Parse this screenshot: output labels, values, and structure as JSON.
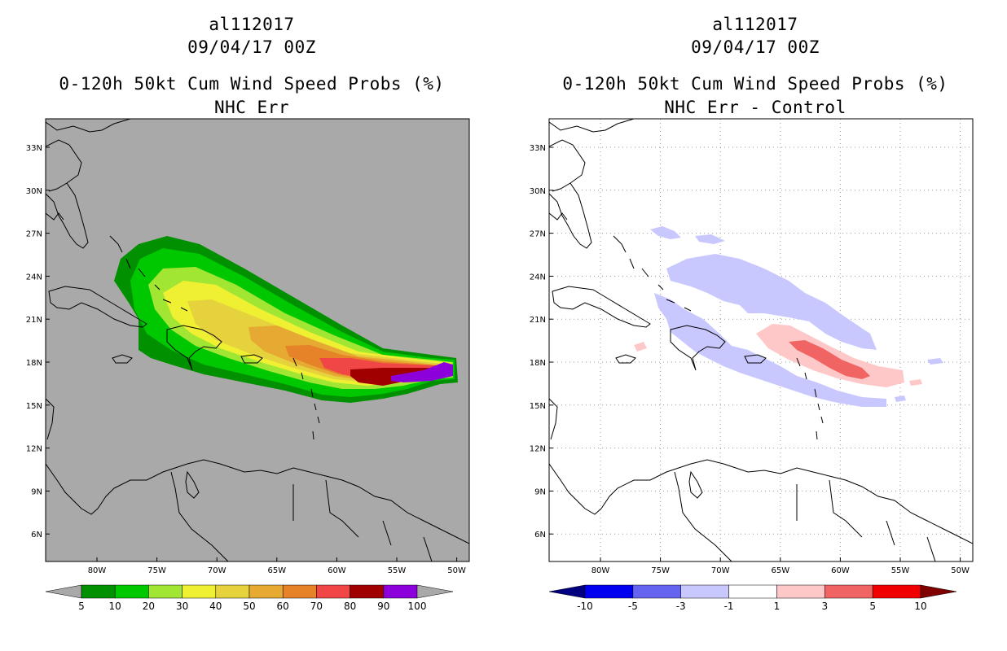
{
  "left": {
    "title1": "al112017",
    "title2": "09/04/17 00Z",
    "title3": "0-120h 50kt Cum Wind Speed Probs (%)",
    "title4": "NHC Err",
    "background_color": "#a9a9a9",
    "lat_labels": [
      "33N",
      "30N",
      "27N",
      "24N",
      "21N",
      "18N",
      "15N",
      "12N",
      "9N",
      "6N"
    ],
    "lon_labels": [
      "80W",
      "75W",
      "70W",
      "65W",
      "60W",
      "55W",
      "50W"
    ],
    "colorbar": {
      "colors": [
        "#009000",
        "#00c800",
        "#a0e632",
        "#f0f032",
        "#e6d23c",
        "#e6aa32",
        "#e68228",
        "#f04646",
        "#a00000",
        "#8c00dc"
      ],
      "labels": [
        "5",
        "10",
        "20",
        "30",
        "40",
        "50",
        "60",
        "70",
        "80",
        "90",
        "100"
      ],
      "under_color": "#a9a9a9",
      "over_color": "#a9a9a9"
    }
  },
  "right": {
    "title1": "al112017",
    "title2": "09/04/17 00Z",
    "title3": "0-120h 50kt Cum Wind Speed Probs (%)",
    "title4": "NHC Err - Control",
    "background_color": "#ffffff",
    "lat_labels": [
      "33N",
      "30N",
      "27N",
      "24N",
      "21N",
      "18N",
      "15N",
      "12N",
      "9N",
      "6N"
    ],
    "lon_labels": [
      "80W",
      "75W",
      "70W",
      "65W",
      "60W",
      "55W",
      "50W"
    ],
    "colorbar": {
      "colors": [
        "#0000f0",
        "#6464f0",
        "#c8c8ff",
        "#ffffff",
        "#ffc8c8",
        "#f06464",
        "#f00000"
      ],
      "labels": [
        "-10",
        "-5",
        "-3",
        "-1",
        "1",
        "3",
        "5",
        "10"
      ],
      "under_color": "#000080",
      "over_color": "#800000"
    }
  }
}
